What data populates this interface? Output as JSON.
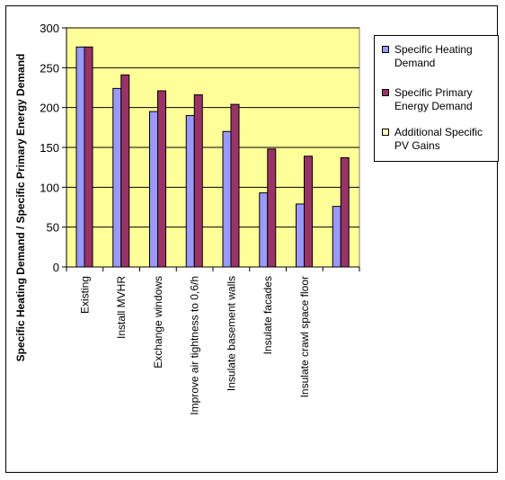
{
  "chart_data": {
    "type": "bar",
    "title": "",
    "xlabel": "",
    "ylabel": "Specific Heating Demand / Specific Primary Energy Demand",
    "ylim": [
      0,
      300
    ],
    "yticks": [
      0,
      50,
      100,
      150,
      200,
      250,
      300
    ],
    "grid": true,
    "legend_position": "right",
    "categories": [
      "Existing",
      "Install MVHR",
      "Exchange windows",
      "Improve air tightness to 0,6/h",
      "Insulate basement walls",
      "Insulate facades",
      "Insulate crawl space floor",
      ""
    ],
    "series": [
      {
        "name": "Specific Heating Demand",
        "color": "#9999ff",
        "values": [
          276,
          224,
          195,
          190,
          170,
          93,
          79,
          76
        ]
      },
      {
        "name": "Specific Primary Energy Demand",
        "color": "#993366",
        "values": [
          276,
          241,
          221,
          216,
          204,
          148,
          139,
          137
        ]
      },
      {
        "name": "Additional Specific PV Gains",
        "color": "#ffffcc",
        "values": [
          0,
          0,
          0,
          0,
          0,
          0,
          0,
          0
        ]
      }
    ],
    "plot_background": "#ffff99"
  }
}
